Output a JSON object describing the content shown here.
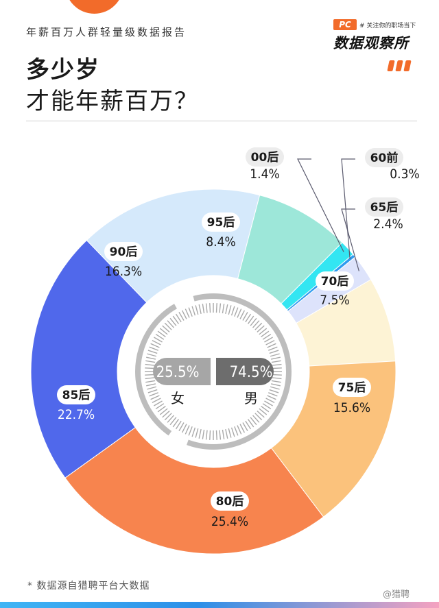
{
  "header": {
    "report_subtitle": "年薪百万人群轻量级数据报告",
    "title_line1": "多少岁",
    "title_line2": "才能年薪百万？"
  },
  "brand": {
    "logo_text": "PC",
    "slogan": "# 关注你的职场当下",
    "name": "数据观察所"
  },
  "chart_data": {
    "type": "pie",
    "categories": [
      "60前",
      "65后",
      "70后",
      "75后",
      "80后",
      "85后",
      "90后",
      "95后",
      "00后"
    ],
    "values": [
      0.3,
      2.4,
      7.5,
      15.6,
      25.4,
      22.7,
      16.3,
      8.4,
      1.4
    ],
    "value_labels": [
      "0.3%",
      "2.4%",
      "7.5%",
      "15.6%",
      "25.4%",
      "22.7%",
      "16.3%",
      "8.4%",
      "1.4%"
    ],
    "colors": [
      "#2f9bef",
      "#dde3fb",
      "#fdf3d5",
      "#fbc27c",
      "#f7844e",
      "#5068eb",
      "#d5e9fb",
      "#9de7d9",
      "#33e6f2"
    ],
    "gender": [
      {
        "label": "女",
        "value": "25.5%"
      },
      {
        "label": "男",
        "value": "74.5%"
      }
    ]
  },
  "footer": {
    "source": "*  数据源自猎聘平台大数据",
    "watermark": "@猎聘"
  }
}
